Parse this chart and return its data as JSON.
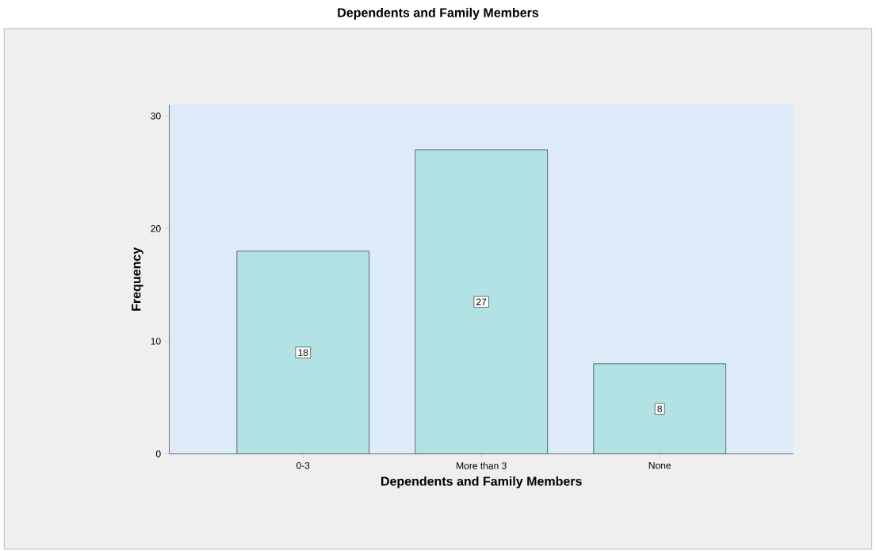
{
  "chart_data": {
    "type": "bar",
    "title": "Dependents and Family Members",
    "xlabel": "Dependents and Family Members",
    "ylabel": "Frequency",
    "categories": [
      "0-3",
      "More than 3",
      "None"
    ],
    "values": [
      18,
      27,
      8
    ],
    "color": "#b2e2e4",
    "ylim": [
      0,
      31
    ],
    "yticks": [
      0,
      10,
      20,
      30
    ],
    "data_labels": true
  }
}
